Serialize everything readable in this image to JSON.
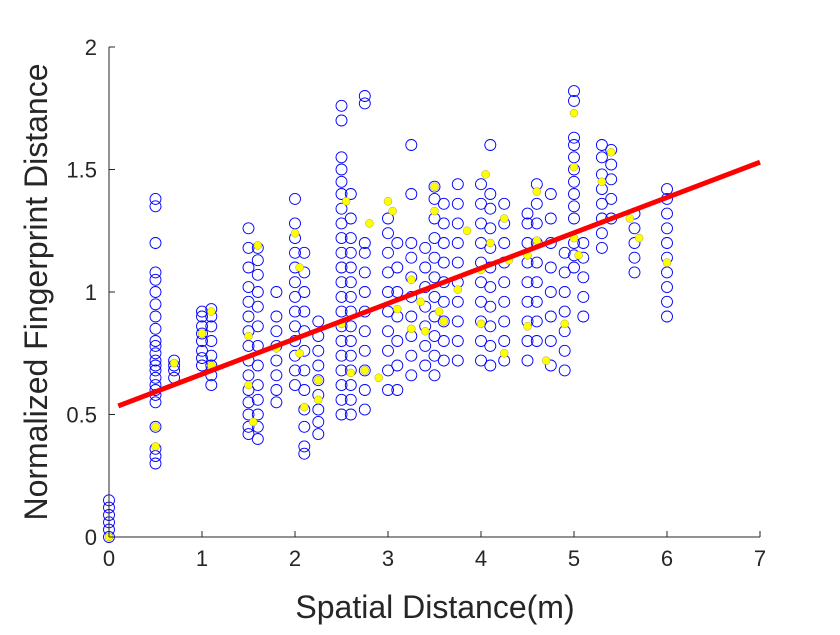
{
  "chart_data": {
    "type": "scatter",
    "title": "",
    "xlabel": "Spatial Distance(m)",
    "ylabel": "Normalized Fingerprint Distance",
    "xlim": [
      0,
      7
    ],
    "ylim": [
      0,
      2
    ],
    "xticks": [
      "0",
      "1",
      "2",
      "3",
      "4",
      "5",
      "6",
      "7"
    ],
    "yticks": [
      "0",
      "0.5",
      "1",
      "1.5",
      "2"
    ],
    "grid": false,
    "legend": "none",
    "colors": {
      "scatter_edge": "#0000ff",
      "highlight_fill": "#ffff00",
      "fit_line": "#ff0000",
      "axis": "#262626"
    },
    "series": [
      {
        "marker": "hollow-circle",
        "columns": [
          {
            "x": 0.0,
            "y": [
              0.0,
              0.03,
              0.06,
              0.09,
              0.12,
              0.15
            ]
          },
          {
            "x": 0.5,
            "y": [
              0.3,
              0.33,
              0.36,
              0.45,
              0.55,
              0.58,
              0.6,
              0.62,
              0.65,
              0.68,
              0.7,
              0.72,
              0.75,
              0.78,
              0.8,
              0.85,
              0.9,
              0.95,
              1.0,
              1.05,
              1.08,
              1.2,
              1.35,
              1.38
            ]
          },
          {
            "x": 0.7,
            "y": [
              0.65,
              0.68,
              0.7,
              0.72
            ]
          },
          {
            "x": 1.0,
            "y": [
              0.7,
              0.73,
              0.76,
              0.8,
              0.83,
              0.86,
              0.9,
              0.92
            ]
          },
          {
            "x": 1.1,
            "y": [
              0.62,
              0.66,
              0.7,
              0.74,
              0.8,
              0.86,
              0.9,
              0.93
            ]
          },
          {
            "x": 1.5,
            "y": [
              0.42,
              0.45,
              0.5,
              0.55,
              0.6,
              0.66,
              0.72,
              0.78,
              0.84,
              0.9,
              0.96,
              1.02,
              1.1,
              1.18,
              1.26
            ]
          },
          {
            "x": 1.6,
            "y": [
              0.4,
              0.45,
              0.5,
              0.56,
              0.62,
              0.7,
              0.78,
              0.86,
              0.94,
              1.0,
              1.07,
              1.13,
              1.18
            ]
          },
          {
            "x": 1.8,
            "y": [
              0.55,
              0.6,
              0.66,
              0.72,
              0.78,
              0.84,
              0.9,
              1.0
            ]
          },
          {
            "x": 2.0,
            "y": [
              0.62,
              0.68,
              0.74,
              0.8,
              0.86,
              0.92,
              0.98,
              1.04,
              1.1,
              1.16,
              1.22,
              1.28,
              1.38
            ]
          },
          {
            "x": 2.1,
            "y": [
              0.34,
              0.37,
              0.45,
              0.52,
              0.6,
              0.68,
              0.76,
              0.84,
              0.92,
              1.0,
              1.08,
              1.16
            ]
          },
          {
            "x": 2.25,
            "y": [
              0.42,
              0.47,
              0.52,
              0.58,
              0.64,
              0.7,
              0.76,
              0.82,
              0.88
            ]
          },
          {
            "x": 2.5,
            "y": [
              0.5,
              0.56,
              0.62,
              0.68,
              0.74,
              0.8,
              0.86,
              0.92,
              0.98,
              1.04,
              1.1,
              1.16,
              1.22,
              1.28,
              1.34,
              1.4,
              1.45,
              1.5,
              1.55,
              1.7,
              1.76
            ]
          },
          {
            "x": 2.6,
            "y": [
              0.5,
              0.56,
              0.62,
              0.68,
              0.74,
              0.8,
              0.86,
              0.92,
              0.98,
              1.04,
              1.1,
              1.16,
              1.22,
              1.3,
              1.4
            ]
          },
          {
            "x": 2.75,
            "y": [
              0.52,
              0.6,
              0.68,
              0.76,
              0.84,
              0.92,
              1.0,
              1.08,
              1.16,
              1.2,
              1.77,
              1.8
            ]
          },
          {
            "x": 3.0,
            "y": [
              0.6,
              0.68,
              0.76,
              0.84,
              0.92,
              1.0,
              1.08,
              1.16,
              1.24,
              1.3
            ]
          },
          {
            "x": 3.1,
            "y": [
              0.6,
              0.7,
              0.8,
              0.9,
              1.0,
              1.1,
              1.2
            ]
          },
          {
            "x": 3.25,
            "y": [
              0.66,
              0.74,
              0.82,
              0.9,
              0.98,
              1.06,
              1.14,
              1.2,
              1.4,
              1.6
            ]
          },
          {
            "x": 3.4,
            "y": [
              0.7,
              0.78,
              0.86,
              0.94,
              1.02,
              1.1,
              1.18
            ]
          },
          {
            "x": 3.5,
            "y": [
              0.66,
              0.74,
              0.82,
              0.9,
              0.98,
              1.06,
              1.14,
              1.22,
              1.3,
              1.38,
              1.43
            ]
          },
          {
            "x": 3.6,
            "y": [
              0.72,
              0.8,
              0.88,
              0.96,
              1.04,
              1.12,
              1.2,
              1.28,
              1.36
            ]
          },
          {
            "x": 3.75,
            "y": [
              0.72,
              0.8,
              0.88,
              0.96,
              1.04,
              1.12,
              1.2,
              1.28,
              1.36,
              1.44
            ]
          },
          {
            "x": 4.0,
            "y": [
              0.72,
              0.8,
              0.88,
              0.96,
              1.04,
              1.12,
              1.2,
              1.28,
              1.36,
              1.44
            ]
          },
          {
            "x": 4.1,
            "y": [
              0.7,
              0.78,
              0.86,
              0.94,
              1.02,
              1.1,
              1.18,
              1.26,
              1.34,
              1.4,
              1.6
            ]
          },
          {
            "x": 4.25,
            "y": [
              0.72,
              0.8,
              0.88,
              0.96,
              1.04,
              1.12,
              1.2,
              1.28,
              1.36
            ]
          },
          {
            "x": 4.5,
            "y": [
              0.72,
              0.8,
              0.88,
              0.96,
              1.04,
              1.12,
              1.2,
              1.28,
              1.32
            ]
          },
          {
            "x": 4.6,
            "y": [
              0.8,
              0.88,
              0.96,
              1.04,
              1.12,
              1.2,
              1.28,
              1.36,
              1.44
            ]
          },
          {
            "x": 4.75,
            "y": [
              0.7,
              0.8,
              0.9,
              1.0,
              1.1,
              1.2,
              1.3,
              1.4
            ]
          },
          {
            "x": 4.9,
            "y": [
              0.68,
              0.76,
              0.84,
              0.92,
              1.0,
              1.08,
              1.16
            ]
          },
          {
            "x": 5.0,
            "y": [
              1.1,
              1.15,
              1.2,
              1.3,
              1.35,
              1.4,
              1.45,
              1.5,
              1.55,
              1.6,
              1.63,
              1.78,
              1.82
            ]
          },
          {
            "x": 5.1,
            "y": [
              0.9,
              0.98,
              1.06,
              1.14,
              1.2
            ]
          },
          {
            "x": 5.3,
            "y": [
              1.18,
              1.24,
              1.3,
              1.36,
              1.42,
              1.48,
              1.55,
              1.6
            ]
          },
          {
            "x": 5.4,
            "y": [
              1.3,
              1.38,
              1.46,
              1.52,
              1.58
            ]
          },
          {
            "x": 5.65,
            "y": [
              1.08,
              1.14,
              1.2,
              1.26,
              1.32
            ]
          },
          {
            "x": 6.0,
            "y": [
              0.9,
              0.96,
              1.02,
              1.08,
              1.14,
              1.2,
              1.26,
              1.32,
              1.38,
              1.42
            ]
          }
        ]
      },
      {
        "marker": "filled-circle",
        "points": [
          [
            0.0,
            0.0
          ],
          [
            0.5,
            0.45
          ],
          [
            0.5,
            0.37
          ],
          [
            0.7,
            0.71
          ],
          [
            1.0,
            0.83
          ],
          [
            1.1,
            0.7
          ],
          [
            1.1,
            0.92
          ],
          [
            1.5,
            0.62
          ],
          [
            1.5,
            0.82
          ],
          [
            1.55,
            0.47
          ],
          [
            1.6,
            1.19
          ],
          [
            1.8,
            0.77
          ],
          [
            2.0,
            1.24
          ],
          [
            2.05,
            0.75
          ],
          [
            2.05,
            1.1
          ],
          [
            2.1,
            0.53
          ],
          [
            2.25,
            0.56
          ],
          [
            2.25,
            0.64
          ],
          [
            2.5,
            0.87
          ],
          [
            2.55,
            1.37
          ],
          [
            2.6,
            0.67
          ],
          [
            2.75,
            0.68
          ],
          [
            2.8,
            1.28
          ],
          [
            2.9,
            0.65
          ],
          [
            3.0,
            1.37
          ],
          [
            3.05,
            1.33
          ],
          [
            3.1,
            0.93
          ],
          [
            3.25,
            0.85
          ],
          [
            3.25,
            1.05
          ],
          [
            3.35,
            0.96
          ],
          [
            3.4,
            0.84
          ],
          [
            3.5,
            1.43
          ],
          [
            3.5,
            1.33
          ],
          [
            3.55,
            0.92
          ],
          [
            3.6,
            0.88
          ],
          [
            3.75,
            1.01
          ],
          [
            3.85,
            1.25
          ],
          [
            4.0,
            0.87
          ],
          [
            4.0,
            1.09
          ],
          [
            4.05,
            1.48
          ],
          [
            4.1,
            1.2
          ],
          [
            4.25,
            0.75
          ],
          [
            4.25,
            1.3
          ],
          [
            4.3,
            1.13
          ],
          [
            4.5,
            0.86
          ],
          [
            4.5,
            1.15
          ],
          [
            4.6,
            1.41
          ],
          [
            4.6,
            1.21
          ],
          [
            4.7,
            0.72
          ],
          [
            4.9,
            0.87
          ],
          [
            5.0,
            1.73
          ],
          [
            5.0,
            1.51
          ],
          [
            5.0,
            1.22
          ],
          [
            5.05,
            1.15
          ],
          [
            5.3,
            1.45
          ],
          [
            5.4,
            1.57
          ],
          [
            5.6,
            1.3
          ],
          [
            5.7,
            1.22
          ],
          [
            6.0,
            1.12
          ]
        ]
      },
      {
        "name": "",
        "type": "line",
        "x": [
          0.1,
          7.0
        ],
        "y": [
          0.535,
          1.53
        ]
      }
    ]
  }
}
